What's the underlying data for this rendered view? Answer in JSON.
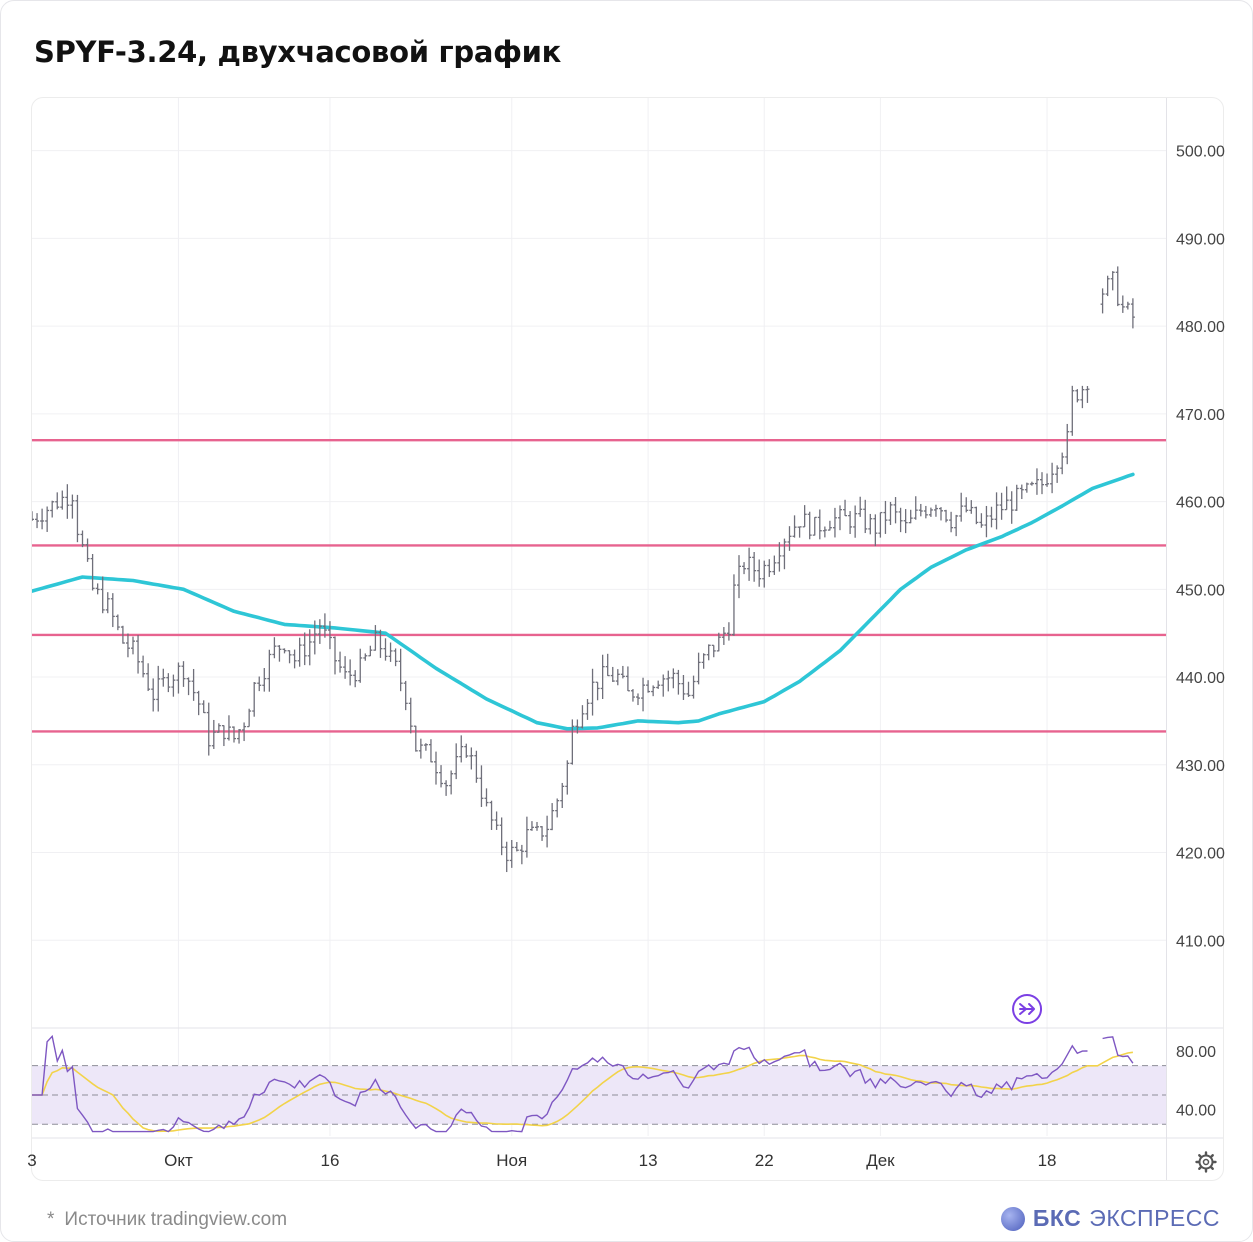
{
  "header": {
    "title": "SPYF-3.24, двухчасовой график"
  },
  "footer": {
    "source_star": "*",
    "source": "Источник tradingview.com",
    "brand_bold": "БКС",
    "brand_rest": "ЭКСПРЕСС"
  },
  "colors": {
    "candle": "#6f6f7a",
    "ma": "#2ec6d6",
    "levels": "#e7638f",
    "rsi": "#7e57c2",
    "rsi_ma": "#f2d34a",
    "rsi_band": "#ede7f8"
  },
  "icons": {
    "alert": "arrow-right-circle-icon",
    "settings": "gear-icon"
  },
  "chart_data": {
    "type": "line",
    "title": "SPYF-3.24, двухчасовой график",
    "ylim": [
      400,
      506
    ],
    "y_ticks": [
      410,
      420,
      430,
      440,
      450,
      460,
      470,
      480,
      490,
      500
    ],
    "y_tick_labels": [
      "410.00",
      "420.00",
      "430.00",
      "440.00",
      "450.00",
      "460.00",
      "470.00",
      "480.00",
      "490.00",
      "500.00"
    ],
    "x_ticks": [
      "3",
      "Окт",
      "16",
      "Ноя",
      "13",
      "22",
      "Дек",
      "18"
    ],
    "x_tick_index": [
      0,
      29,
      59,
      95,
      122,
      145,
      168,
      201
    ],
    "n_bars": 221,
    "price_anchors": [
      [
        0,
        458
      ],
      [
        5,
        460
      ],
      [
        8,
        461
      ],
      [
        9,
        457
      ],
      [
        12,
        450
      ],
      [
        15,
        448
      ],
      [
        18,
        444
      ],
      [
        20,
        443
      ],
      [
        24,
        438
      ],
      [
        27,
        440
      ],
      [
        30,
        441
      ],
      [
        33,
        437
      ],
      [
        35,
        433
      ],
      [
        38,
        434
      ],
      [
        40,
        433
      ],
      [
        42,
        435
      ],
      [
        44,
        439
      ],
      [
        46,
        441
      ],
      [
        48,
        443
      ],
      [
        50,
        444
      ],
      [
        52,
        442
      ],
      [
        55,
        444
      ],
      [
        57,
        446
      ],
      [
        60,
        442
      ],
      [
        62,
        440
      ],
      [
        65,
        441
      ],
      [
        68,
        444
      ],
      [
        70,
        443
      ],
      [
        72,
        441
      ],
      [
        74,
        438
      ],
      [
        76,
        432
      ],
      [
        79,
        431
      ],
      [
        82,
        428
      ],
      [
        85,
        431
      ],
      [
        86,
        432
      ],
      [
        88,
        429
      ],
      [
        90,
        425
      ],
      [
        92,
        422
      ],
      [
        94,
        420
      ],
      [
        96,
        420
      ],
      [
        98,
        422
      ],
      [
        100,
        422
      ],
      [
        102,
        423
      ],
      [
        104,
        426
      ],
      [
        106,
        430
      ],
      [
        107,
        434
      ],
      [
        109,
        437
      ],
      [
        111,
        439
      ],
      [
        113,
        440
      ],
      [
        116,
        440
      ],
      [
        118,
        438
      ],
      [
        121,
        439
      ],
      [
        124,
        440
      ],
      [
        127,
        440
      ],
      [
        130,
        438
      ],
      [
        132,
        441
      ],
      [
        134,
        443
      ],
      [
        136,
        444
      ],
      [
        138,
        446
      ],
      [
        139,
        450
      ],
      [
        141,
        453
      ],
      [
        144,
        452
      ],
      [
        146,
        453
      ],
      [
        149,
        456
      ],
      [
        152,
        458
      ],
      [
        155,
        457
      ],
      [
        158,
        458
      ],
      [
        161,
        458
      ],
      [
        164,
        458
      ],
      [
        167,
        457
      ],
      [
        170,
        459
      ],
      [
        173,
        457
      ],
      [
        176,
        459
      ],
      [
        179,
        460
      ],
      [
        182,
        458
      ],
      [
        185,
        459
      ],
      [
        188,
        457
      ],
      [
        191,
        459
      ],
      [
        194,
        460
      ],
      [
        197,
        461
      ],
      [
        200,
        462
      ],
      [
        202,
        464
      ],
      [
        204,
        466
      ],
      [
        205,
        467
      ],
      [
        206,
        472
      ],
      [
        208,
        473
      ],
      [
        209,
        474
      ],
      [
        212,
        484
      ],
      [
        214,
        485
      ],
      [
        216,
        482
      ],
      [
        218,
        481
      ]
    ],
    "gaps": [
      210,
      211
    ],
    "series": [
      {
        "role": "price",
        "style": "ohlc-bars"
      },
      {
        "role": "moving-average",
        "anchors": [
          [
            0,
            449.8
          ],
          [
            10,
            451.4
          ],
          [
            20,
            451
          ],
          [
            30,
            450
          ],
          [
            40,
            447.5
          ],
          [
            50,
            446
          ],
          [
            60,
            445.6
          ],
          [
            70,
            445
          ],
          [
            80,
            441
          ],
          [
            90,
            437.5
          ],
          [
            100,
            434.8
          ],
          [
            106,
            434.1
          ],
          [
            112,
            434.2
          ],
          [
            120,
            435
          ],
          [
            128,
            434.8
          ],
          [
            132,
            435
          ],
          [
            136,
            435.8
          ],
          [
            145,
            437.2
          ],
          [
            152,
            439.5
          ],
          [
            160,
            443
          ],
          [
            166,
            446.5
          ],
          [
            172,
            450
          ],
          [
            178,
            452.5
          ],
          [
            185,
            454.5
          ],
          [
            192,
            456
          ],
          [
            198,
            457.6
          ],
          [
            204,
            459.5
          ],
          [
            210,
            461.5
          ],
          [
            218,
            463.1
          ]
        ]
      },
      {
        "role": "level",
        "value": 467
      },
      {
        "role": "level",
        "value": 455
      },
      {
        "role": "level",
        "value": 444.8
      },
      {
        "role": "level",
        "value": 433.8
      }
    ],
    "rsi": {
      "ylim": [
        22,
        95
      ],
      "y_ticks": [
        40,
        80
      ],
      "y_tick_labels": [
        "40.00",
        "80.00"
      ],
      "band": [
        30,
        70
      ],
      "midline": 50,
      "dashed_levels": [
        30,
        50,
        70
      ]
    },
    "grid": true,
    "legend": "none"
  }
}
